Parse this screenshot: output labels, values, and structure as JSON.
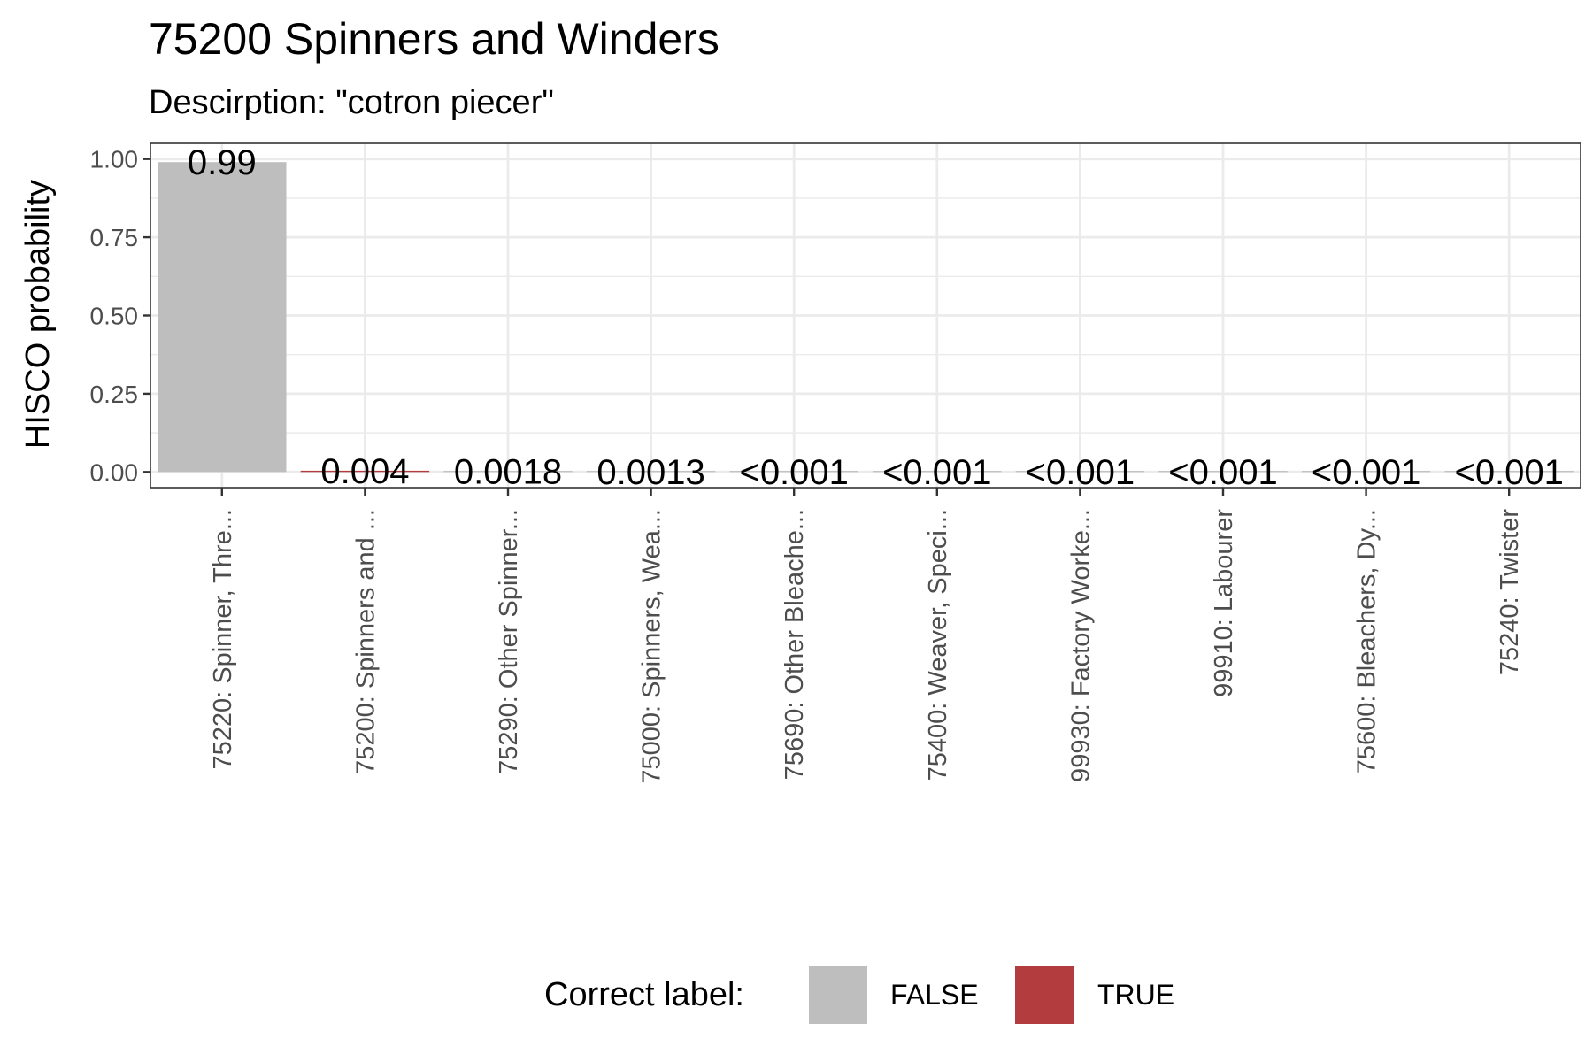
{
  "chart_data": {
    "type": "bar",
    "title": "75200 Spinners and Winders",
    "subtitle": "Descirption: \"cotron piecer\"",
    "xlabel": "",
    "ylabel": "HISCO probability",
    "ylim": [
      -0.05,
      1.05
    ],
    "yticks": [
      0,
      0.25,
      0.5,
      0.75,
      1.0
    ],
    "ytick_labels": [
      "0.00",
      "0.25",
      "0.50",
      "0.75",
      "1.00"
    ],
    "grid": true,
    "categories": [
      "75220: Spinner, Thre...",
      "75200: Spinners and ...",
      "75290: Other Spinner...",
      "75000: Spinners, Wea...",
      "75690: Other Bleache...",
      "75400: Weaver, Speci...",
      "99930: Factory Worke...",
      "99910: Labourer",
      "75600: Bleachers, Dy...",
      "75240: Twister"
    ],
    "values": [
      0.99,
      0.004,
      0.0018,
      0.0013,
      0.0005,
      0.0004,
      0.0003,
      0.0003,
      0.0002,
      0.0002
    ],
    "value_labels": [
      "0.99",
      "0.004",
      "0.0018",
      "0.0013",
      "<0.001",
      "<0.001",
      "<0.001",
      "<0.001",
      "<0.001",
      "<0.001"
    ],
    "correct": [
      false,
      true,
      false,
      false,
      false,
      false,
      false,
      false,
      false,
      false
    ],
    "legend": {
      "title": "Correct label:",
      "placement": "bottom",
      "entries": [
        {
          "label": "FALSE",
          "color": "#bebebe"
        },
        {
          "label": "TRUE",
          "color": "#b33c3e"
        }
      ]
    }
  }
}
